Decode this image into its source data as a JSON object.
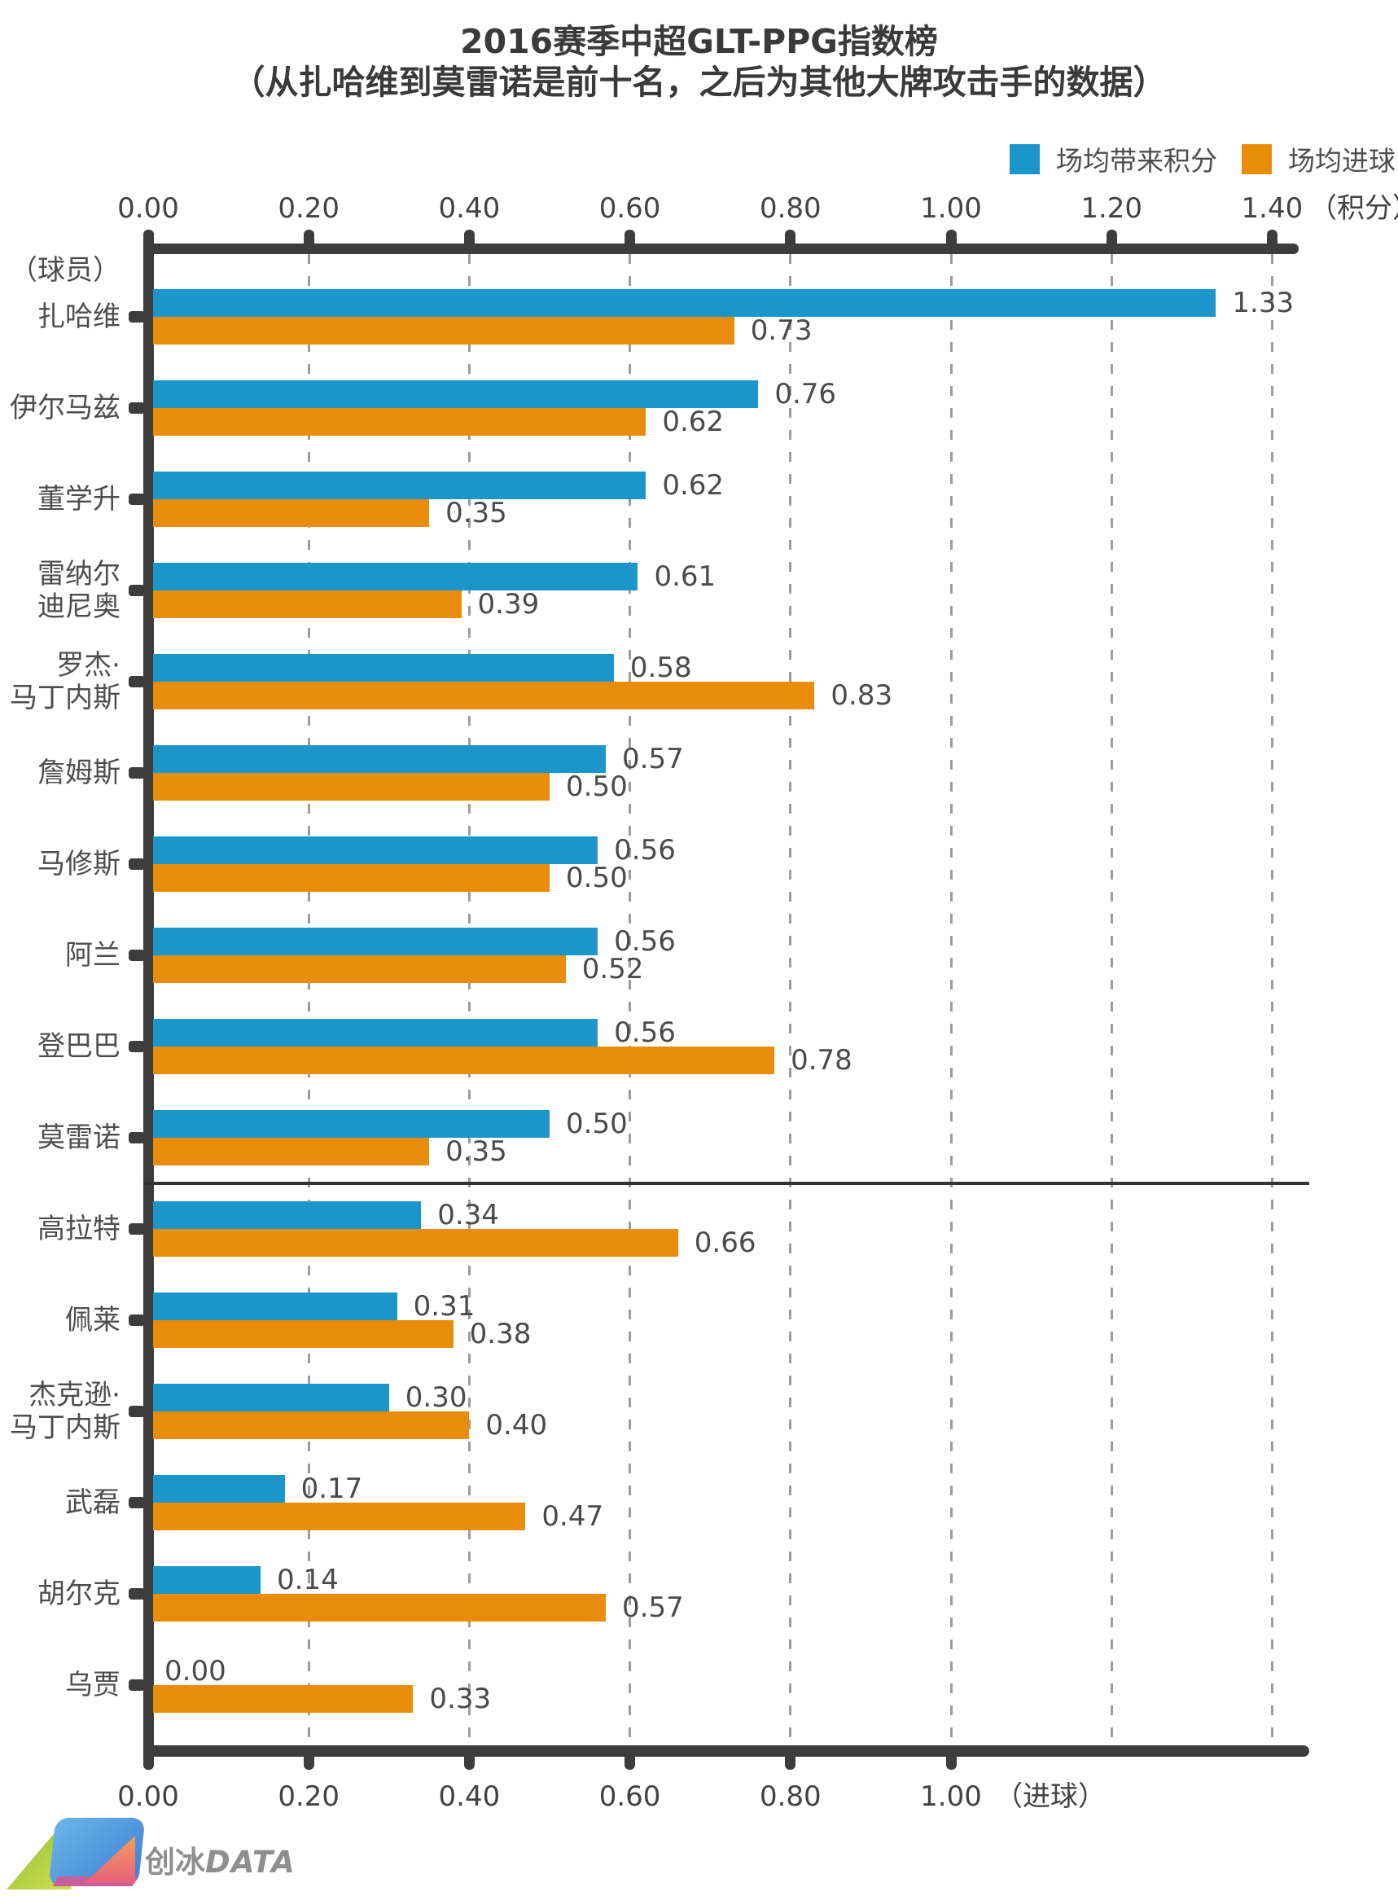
{
  "title": {
    "line1": "2016赛季中超GLT-PPG指数榜",
    "line2": "（从扎哈维到莫雷诺是前十名，之后为其他大牌攻击手的数据）"
  },
  "legend": [
    {
      "label": "场均带来积分",
      "color": "#1a96ca"
    },
    {
      "label": "场均进球",
      "color": "#e88c0a"
    }
  ],
  "axes": {
    "top": {
      "ticks": [
        "0.00",
        "0.20",
        "0.40",
        "0.60",
        "0.80",
        "1.00",
        "1.20",
        "1.40"
      ],
      "unit_label": "（积分）"
    },
    "bottom": {
      "ticks": [
        "0.00",
        "0.20",
        "0.40",
        "0.60",
        "0.80",
        "1.00"
      ],
      "unit_label": "（进球）"
    },
    "category_header": "（球员）"
  },
  "chart_data": {
    "type": "bar",
    "orientation": "horizontal",
    "title": "2016赛季中超GLT-PPG指数榜",
    "subtitle": "（从扎哈维到莫雷诺是前十名，之后为其他大牌攻击手的数据）",
    "xlim_points": [
      0,
      1.4
    ],
    "xlim_goals": [
      0,
      1.0
    ],
    "grid": "dashed-vertical-every-0.20",
    "legend_position": "top-right",
    "divider_after_index": 9,
    "categories": [
      [
        "扎哈维"
      ],
      [
        "伊尔马兹"
      ],
      [
        "董学升"
      ],
      [
        "雷纳尔",
        "迪尼奥"
      ],
      [
        "罗杰·",
        "马丁内斯"
      ],
      [
        "詹姆斯"
      ],
      [
        "马修斯"
      ],
      [
        "阿兰"
      ],
      [
        "登巴巴"
      ],
      [
        "莫雷诺"
      ],
      [
        "高拉特"
      ],
      [
        "佩莱"
      ],
      [
        "杰克逊·",
        "马丁内斯"
      ],
      [
        "武磊"
      ],
      [
        "胡尔克"
      ],
      [
        "乌贾"
      ]
    ],
    "series": [
      {
        "name": "场均带来积分",
        "color": "#1a96ca",
        "values": [
          1.33,
          0.76,
          0.62,
          0.61,
          0.58,
          0.57,
          0.56,
          0.56,
          0.56,
          0.5,
          0.34,
          0.31,
          0.3,
          0.17,
          0.14,
          0.0
        ]
      },
      {
        "name": "场均进球",
        "color": "#e88c0a",
        "values": [
          0.73,
          0.62,
          0.35,
          0.39,
          0.83,
          0.5,
          0.5,
          0.52,
          0.78,
          0.35,
          0.66,
          0.38,
          0.4,
          0.47,
          0.57,
          0.33
        ]
      }
    ]
  },
  "logo": {
    "text_cn": "创冰",
    "text_en": "DATA"
  }
}
